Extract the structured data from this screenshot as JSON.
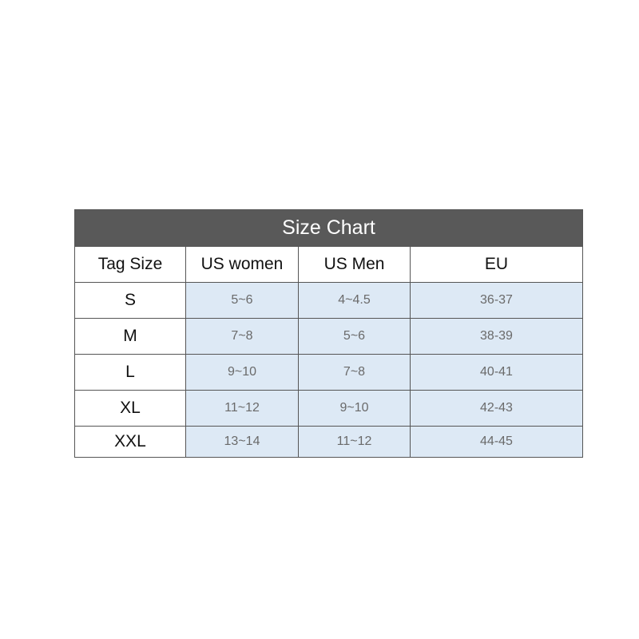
{
  "title": "Size Chart",
  "columns": [
    "Tag Size",
    "US women",
    "US Men",
    "EU"
  ],
  "rows": [
    [
      "S",
      "5~6",
      "4~4.5",
      "36-37"
    ],
    [
      "M",
      "7~8",
      "5~6",
      "38-39"
    ],
    [
      "L",
      "9~10",
      "7~8",
      "40-41"
    ],
    [
      "XL",
      "11~12",
      "9~10",
      "42-43"
    ],
    [
      "XXL",
      "13~14",
      "11~12",
      "44-45"
    ]
  ],
  "colors": {
    "header_bg": "#595959",
    "cell_bg": "#dde9f5"
  }
}
